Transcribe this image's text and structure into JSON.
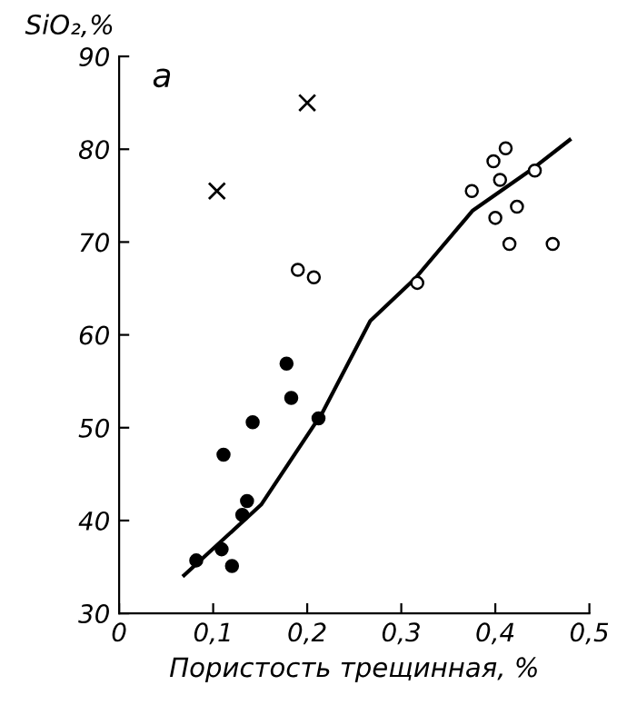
{
  "chart_data": {
    "type": "scatter",
    "ylabel": "SiO₂,%",
    "xlabel": "Пористость трещинная, %",
    "annotations": [
      "а"
    ],
    "xlim": [
      0,
      0.5
    ],
    "ylim": [
      30,
      90
    ],
    "xticks": [
      {
        "value": 0,
        "label": "0"
      },
      {
        "value": 0.1,
        "label": "0,1"
      },
      {
        "value": 0.2,
        "label": "0,2"
      },
      {
        "value": 0.3,
        "label": "0,3"
      },
      {
        "value": 0.4,
        "label": "0,4"
      },
      {
        "value": 0.5,
        "label": "0,5"
      }
    ],
    "yticks": [
      30,
      40,
      50,
      60,
      70,
      80,
      90
    ],
    "grid": false,
    "legend": false,
    "series": [
      {
        "marker": "cross",
        "color": "#000000",
        "x": [
          0.104,
          0.2
        ],
        "values": [
          75.5,
          85
        ]
      },
      {
        "marker": "circle",
        "color": "#ffffff",
        "x": [
          0.19,
          0.207,
          0.317,
          0.375,
          0.398,
          0.411,
          0.405,
          0.4,
          0.415,
          0.423,
          0.442,
          0.461
        ],
        "values": [
          67,
          66.2,
          65.6,
          75.5,
          78.7,
          80.1,
          76.7,
          72.6,
          69.8,
          73.8,
          77.7,
          69.8
        ]
      },
      {
        "marker": "circle",
        "color": "#000000",
        "x": [
          0.082,
          0.109,
          0.12,
          0.111,
          0.131,
          0.136,
          0.142,
          0.178,
          0.183,
          0.212
        ],
        "values": [
          35.7,
          36.9,
          35.1,
          47.1,
          40.6,
          42.1,
          50.6,
          56.9,
          53.2,
          51.0
        ]
      },
      {
        "type": "line",
        "marker": "none",
        "line_style": "solid",
        "color": "#000000",
        "x": [
          0.069,
          0.151,
          0.216,
          0.267,
          0.315,
          0.376,
          0.441,
          0.479
        ],
        "values": [
          34.1,
          41.7,
          51.6,
          61.5,
          66.1,
          73.4,
          78.0,
          81.0
        ]
      }
    ]
  }
}
